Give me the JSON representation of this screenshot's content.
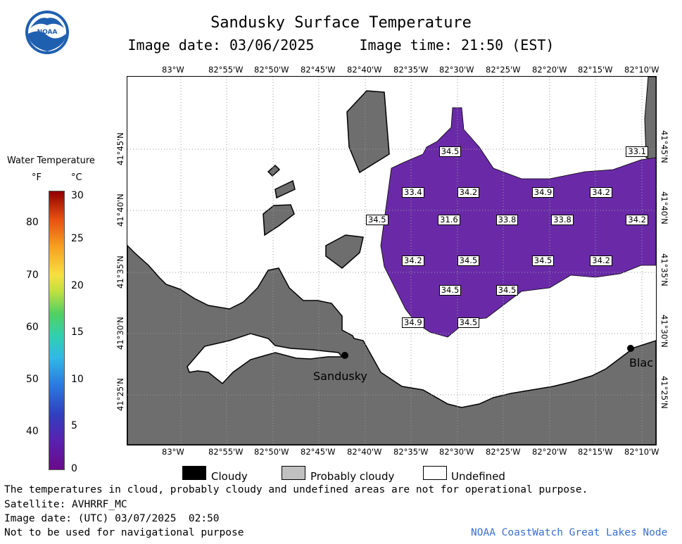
{
  "header": {
    "title": "Sandusky Surface Temperature",
    "image_date_line": "Image date: 03/06/2025",
    "image_time_line": "Image time: 21:50 (EST)"
  },
  "logo": {
    "text": "NOAA"
  },
  "legend": {
    "title": "Water Temperature",
    "unit_f": "°F",
    "unit_c": "°C",
    "f_ticks": [
      "80",
      "70",
      "60",
      "50",
      "40"
    ],
    "c_ticks": [
      "30",
      "25",
      "20",
      "15",
      "10",
      "5",
      "0"
    ]
  },
  "map": {
    "top_lon_labels": [
      "83°W",
      "82°55'W",
      "82°50'W",
      "82°45'W",
      "82°40'W",
      "82°35'W",
      "82°30'W",
      "82°25'W",
      "82°20'W",
      "82°15'W",
      "82°10'W"
    ],
    "bottom_lon_labels": [
      "83°W",
      "82°55'W",
      "82°50'W",
      "82°45'W",
      "82°40'W",
      "82°35'W",
      "82°30'W",
      "82°25'W",
      "82°20'W",
      "82°15'W",
      "82°10'W"
    ],
    "left_lat_labels": [
      "41°45'N",
      "41°40'N",
      "41°35'N",
      "41°30'N",
      "41°25'N"
    ],
    "right_lat_labels": [
      "41°45'N",
      "41°40'N",
      "41°35'N",
      "41°30'N",
      "41°25'N"
    ],
    "places": [
      {
        "name": "Sandusky"
      },
      {
        "name": "Blac"
      }
    ],
    "temperature_labels": [
      {
        "value": "34.5",
        "lon": -82.508,
        "lat": 41.747
      },
      {
        "value": "33.1",
        "lon": -82.17,
        "lat": 41.747
      },
      {
        "value": "33.4",
        "lon": -82.575,
        "lat": 41.692
      },
      {
        "value": "34.2",
        "lon": -82.475,
        "lat": 41.692
      },
      {
        "value": "34.9",
        "lon": -82.34,
        "lat": 41.692
      },
      {
        "value": "34.2",
        "lon": -82.235,
        "lat": 41.692
      },
      {
        "value": "34.5",
        "lon": -82.64,
        "lat": 41.655
      },
      {
        "value": "31.6",
        "lon": -82.51,
        "lat": 41.655
      },
      {
        "value": "33.8",
        "lon": -82.405,
        "lat": 41.655
      },
      {
        "value": "33.8",
        "lon": -82.305,
        "lat": 41.655
      },
      {
        "value": "34.2",
        "lon": -82.17,
        "lat": 41.655
      },
      {
        "value": "34.2",
        "lon": -82.575,
        "lat": 41.6
      },
      {
        "value": "34.5",
        "lon": -82.475,
        "lat": 41.6
      },
      {
        "value": "34.5",
        "lon": -82.34,
        "lat": 41.6
      },
      {
        "value": "34.2",
        "lon": -82.235,
        "lat": 41.6
      },
      {
        "value": "34.5",
        "lon": -82.508,
        "lat": 41.56
      },
      {
        "value": "34.5",
        "lon": -82.405,
        "lat": 41.56
      },
      {
        "value": "34.9",
        "lon": -82.575,
        "lat": 41.516
      },
      {
        "value": "34.5",
        "lon": -82.475,
        "lat": 41.516
      }
    ]
  },
  "key": {
    "cloudy": "Cloudy",
    "probably_cloudy": "Probably cloudy",
    "undefined": "Undefined"
  },
  "footer": {
    "disclaimer": "The temperatures in cloud, probably cloudy and undefined areas are not for operational purpose.",
    "satellite": "Satellite: AVHRRF_MC",
    "utc_date": "Image date: (UTC) 03/07/2025  02:50",
    "nav_warning": "Not to be used for navigational purpose",
    "credit": "NOAA CoastWatch Great Lakes Node"
  },
  "colors": {
    "land": "#6e6e6e",
    "water_purple": "#6a2aa8",
    "credit_blue": "#3a6fd0"
  }
}
